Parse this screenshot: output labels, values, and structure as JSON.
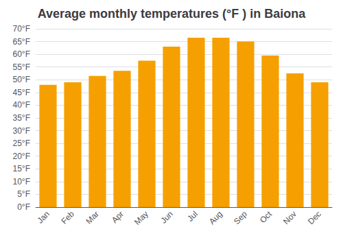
{
  "chart_data": {
    "type": "bar",
    "title": "Average monthly temperatures (°F ) in Baiona",
    "categories": [
      "Jan",
      "Feb",
      "Mar",
      "Apr",
      "May",
      "Jun",
      "Jul",
      "Aug",
      "Sep",
      "Oct",
      "Nov",
      "Dec"
    ],
    "values": [
      48,
      49,
      51.5,
      53.5,
      57.5,
      63,
      66.5,
      66.5,
      65,
      59.5,
      52.5,
      49
    ],
    "color": "#F5A000",
    "ylim": [
      0,
      70
    ],
    "yticks": [
      {
        "value": 0,
        "label": "0°F"
      },
      {
        "value": 5,
        "label": "5°F"
      },
      {
        "value": 10,
        "label": "10°F"
      },
      {
        "value": 15,
        "label": "15°F"
      },
      {
        "value": 20,
        "label": "20°F"
      },
      {
        "value": 25,
        "label": "25°F"
      },
      {
        "value": 30,
        "label": "30°F"
      },
      {
        "value": 35,
        "label": "35°F"
      },
      {
        "value": 40,
        "label": "40°F"
      },
      {
        "value": 45,
        "label": "45°F"
      },
      {
        "value": 50,
        "label": "50°F"
      },
      {
        "value": 55,
        "label": "55°F"
      },
      {
        "value": 60,
        "label": "60°F"
      },
      {
        "value": 65,
        "label": "65°F"
      },
      {
        "value": 70,
        "label": "70°F"
      }
    ],
    "grid": true
  }
}
